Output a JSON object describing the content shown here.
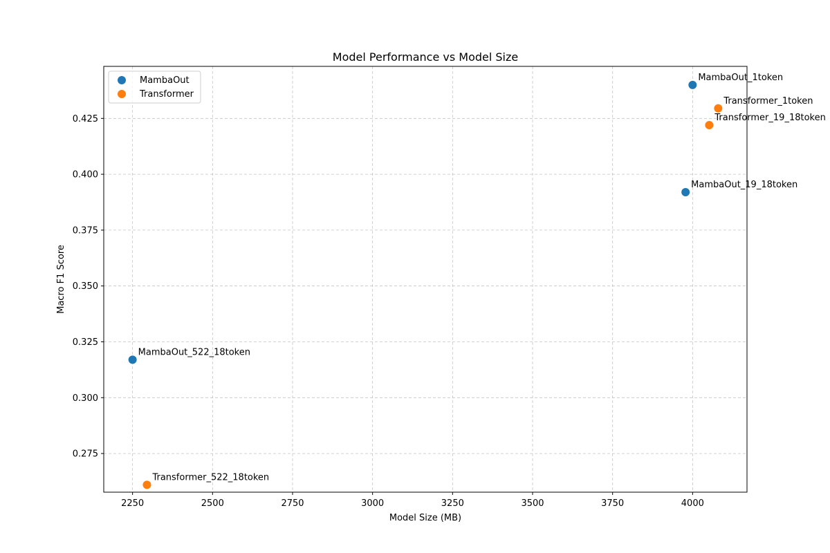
{
  "chart_data": {
    "type": "scatter",
    "title": "Model Performance vs Model Size",
    "xlabel": "Model Size (MB)",
    "ylabel": "Macro F1 Score",
    "xlim": [
      2160,
      4170
    ],
    "ylim": [
      0.2577,
      0.4483
    ],
    "xticks": [
      2250,
      2500,
      2750,
      3000,
      3250,
      3500,
      3750,
      4000
    ],
    "yticks": [
      0.275,
      0.3,
      0.325,
      0.35,
      0.375,
      0.4,
      0.425
    ],
    "grid": true,
    "legend_position": "top-left",
    "series": [
      {
        "name": "MambaOut",
        "color": "#1f77b4",
        "points": [
          {
            "label": "MambaOut_1token",
            "x": 4000,
            "y": 0.44
          },
          {
            "label": "MambaOut_19_18token",
            "x": 3978,
            "y": 0.392
          },
          {
            "label": "MambaOut_522_18token",
            "x": 2250,
            "y": 0.317
          }
        ]
      },
      {
        "name": "Transformer",
        "color": "#ff7f0e",
        "points": [
          {
            "label": "Transformer_1token",
            "x": 4080,
            "y": 0.4295
          },
          {
            "label": "Transformer_19_18token",
            "x": 4052,
            "y": 0.422
          },
          {
            "label": "Transformer_522_18token",
            "x": 2295,
            "y": 0.261
          }
        ]
      }
    ]
  }
}
